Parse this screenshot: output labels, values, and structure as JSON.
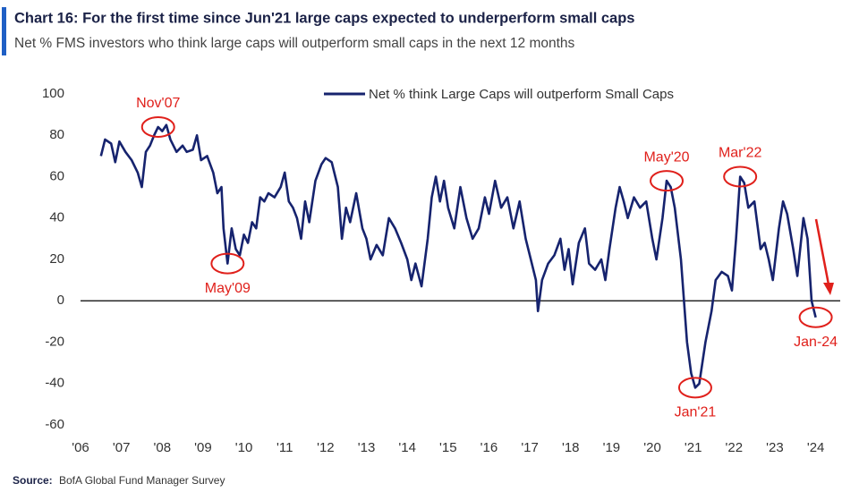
{
  "chart_data": {
    "type": "line",
    "title": "Chart 16: For the first time since Jun'21 large caps expected to underperform small caps",
    "subtitle": "Net % FMS investors who think large caps will outperform small caps in the next 12 months",
    "source": {
      "label": "Source:",
      "text": "BofA Global Fund Manager Survey"
    },
    "legend": "top",
    "x": [
      2006.5,
      2006.6,
      2006.75,
      2006.85,
      2006.95,
      2007.1,
      2007.25,
      2007.4,
      2007.5,
      2007.6,
      2007.7,
      2007.8,
      2007.9,
      2008.0,
      2008.1,
      2008.2,
      2008.35,
      2008.5,
      2008.6,
      2008.75,
      2008.85,
      2008.95,
      2009.1,
      2009.25,
      2009.35,
      2009.45,
      2009.5,
      2009.6,
      2009.7,
      2009.8,
      2009.9,
      2010.0,
      2010.1,
      2010.2,
      2010.3,
      2010.4,
      2010.5,
      2010.6,
      2010.75,
      2010.9,
      2011.0,
      2011.1,
      2011.2,
      2011.3,
      2011.4,
      2011.5,
      2011.6,
      2011.75,
      2011.9,
      2012.0,
      2012.15,
      2012.3,
      2012.4,
      2012.5,
      2012.6,
      2012.75,
      2012.9,
      2013.0,
      2013.1,
      2013.25,
      2013.4,
      2013.55,
      2013.7,
      2013.85,
      2014.0,
      2014.1,
      2014.2,
      2014.35,
      2014.5,
      2014.6,
      2014.7,
      2014.8,
      2014.9,
      2015.0,
      2015.15,
      2015.3,
      2015.45,
      2015.6,
      2015.75,
      2015.9,
      2016.0,
      2016.15,
      2016.3,
      2016.45,
      2016.6,
      2016.75,
      2016.9,
      2017.0,
      2017.15,
      2017.2,
      2017.3,
      2017.45,
      2017.6,
      2017.75,
      2017.85,
      2017.95,
      2018.05,
      2018.2,
      2018.35,
      2018.45,
      2018.6,
      2018.75,
      2018.85,
      2018.95,
      2019.1,
      2019.2,
      2019.3,
      2019.4,
      2019.55,
      2019.7,
      2019.85,
      2020.0,
      2020.1,
      2020.25,
      2020.35,
      2020.45,
      2020.55,
      2020.7,
      2020.85,
      2020.95,
      2021.05,
      2021.15,
      2021.3,
      2021.45,
      2021.55,
      2021.7,
      2021.85,
      2021.95,
      2022.05,
      2022.15,
      2022.25,
      2022.35,
      2022.5,
      2022.65,
      2022.75,
      2022.85,
      2022.95,
      2023.1,
      2023.2,
      2023.3,
      2023.45,
      2023.55,
      2023.7,
      2023.8,
      2023.9,
      2024.0
    ],
    "series": [
      {
        "name": "Net % think Large Caps will outperform Small Caps",
        "color": "#16236e",
        "values": [
          70,
          78,
          76,
          67,
          77,
          72,
          68,
          62,
          55,
          72,
          75,
          80,
          84,
          82,
          85,
          78,
          72,
          75,
          72,
          73,
          80,
          68,
          70,
          62,
          52,
          55,
          35,
          18,
          35,
          25,
          22,
          32,
          28,
          38,
          35,
          50,
          48,
          52,
          50,
          55,
          62,
          48,
          45,
          40,
          30,
          48,
          38,
          58,
          66,
          69,
          67,
          55,
          30,
          45,
          38,
          52,
          35,
          30,
          20,
          27,
          22,
          40,
          35,
          28,
          20,
          10,
          18,
          7,
          30,
          50,
          60,
          48,
          58,
          45,
          35,
          55,
          40,
          30,
          35,
          50,
          42,
          58,
          45,
          50,
          35,
          48,
          30,
          22,
          10,
          -5,
          10,
          18,
          22,
          30,
          15,
          25,
          8,
          28,
          35,
          18,
          15,
          20,
          10,
          25,
          45,
          55,
          48,
          40,
          50,
          45,
          48,
          30,
          20,
          40,
          58,
          55,
          45,
          20,
          -20,
          -35,
          -42,
          -40,
          -20,
          -5,
          10,
          14,
          12,
          5,
          30,
          60,
          57,
          45,
          48,
          25,
          28,
          20,
          10,
          35,
          48,
          42,
          25,
          12,
          40,
          30,
          0,
          -8
        ]
      }
    ],
    "xlim": [
      2006,
      2024.6
    ],
    "xticks": [
      {
        "value": 2006,
        "label": "'06"
      },
      {
        "value": 2007,
        "label": "'07"
      },
      {
        "value": 2008,
        "label": "'08"
      },
      {
        "value": 2009,
        "label": "'09"
      },
      {
        "value": 2010,
        "label": "'10"
      },
      {
        "value": 2011,
        "label": "'11"
      },
      {
        "value": 2012,
        "label": "'12"
      },
      {
        "value": 2013,
        "label": "'13"
      },
      {
        "value": 2014,
        "label": "'14"
      },
      {
        "value": 2015,
        "label": "'15"
      },
      {
        "value": 2016,
        "label": "'16"
      },
      {
        "value": 2017,
        "label": "'17"
      },
      {
        "value": 2018,
        "label": "'18"
      },
      {
        "value": 2019,
        "label": "'19"
      },
      {
        "value": 2020,
        "label": "'20"
      },
      {
        "value": 2021,
        "label": "'21"
      },
      {
        "value": 2022,
        "label": "'22"
      },
      {
        "value": 2023,
        "label": "'23"
      },
      {
        "value": 2024,
        "label": "'24"
      }
    ],
    "ylim": [
      -60,
      100
    ],
    "yticks": [
      -60,
      -40,
      -20,
      0,
      20,
      40,
      60,
      80,
      100
    ],
    "annotation_color": "#e0201b",
    "annotations": [
      {
        "text": "Nov'07",
        "x": 2007.9,
        "y": 84,
        "position": "above"
      },
      {
        "text": "May'09",
        "x": 2009.6,
        "y": 18,
        "position": "below"
      },
      {
        "text": "May'20",
        "x": 2020.35,
        "y": 58,
        "position": "above"
      },
      {
        "text": "Jan'21",
        "x": 2021.05,
        "y": -42,
        "position": "below"
      },
      {
        "text": "Mar'22",
        "x": 2022.15,
        "y": 60,
        "position": "above"
      },
      {
        "text": "Jan-24",
        "x": 2024.0,
        "y": -8,
        "position": "below"
      }
    ]
  }
}
